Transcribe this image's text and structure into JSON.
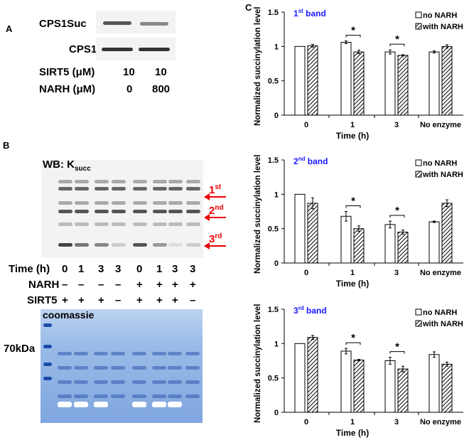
{
  "panel_a": {
    "label": "A",
    "blot_labels": [
      "CPS1Suc",
      "CPS1"
    ],
    "rows": [
      {
        "label": "SIRT5 (μM)",
        "values": [
          "10",
          "10"
        ]
      },
      {
        "label": "NARH (μM)",
        "values": [
          "0",
          "800"
        ]
      }
    ]
  },
  "panel_b": {
    "label": "B",
    "wb_label": "WB: K",
    "wb_sub": "succ",
    "band_labels": [
      {
        "n": "1",
        "sup": "st"
      },
      {
        "n": "2",
        "sup": "nd"
      },
      {
        "n": "3",
        "sup": "rd"
      }
    ],
    "rows": [
      {
        "label": "Time (h)",
        "values": [
          "0",
          "1",
          "3",
          "3",
          "0",
          "1",
          "3",
          "3"
        ]
      },
      {
        "label": "NARH",
        "values": [
          "–",
          "–",
          "–",
          "–",
          "+",
          "+",
          "+",
          "+"
        ]
      },
      {
        "label": "SIRT5",
        "values": [
          "+",
          "+",
          "+",
          "–",
          "+",
          "+",
          "+",
          "–"
        ]
      }
    ],
    "gel_label": "coomassie",
    "marker_label": "70kDa"
  },
  "panel_c": {
    "label": "C"
  },
  "chart_data": [
    {
      "type": "bar",
      "title": "1",
      "title_sup": "st",
      "title_suffix": " band",
      "title_color": "#1a1aff",
      "categories": [
        "0",
        "1",
        "3",
        "No enzyme"
      ],
      "xlabel": "Time (h)",
      "ylabel": "Normalized succinylation level",
      "ylim": [
        0,
        1.5
      ],
      "yticks": [
        "0",
        "0.5",
        "1",
        "1.5"
      ],
      "legend": "top-right",
      "series": [
        {
          "name": "no NARH",
          "fill": "white",
          "values": [
            1.0,
            1.06,
            0.92,
            0.92
          ],
          "errors": [
            0,
            0.02,
            0.03,
            0.015
          ]
        },
        {
          "name": "with NARH",
          "fill": "hatched",
          "values": [
            1.01,
            0.92,
            0.87,
            1.0
          ],
          "errors": [
            0.02,
            0.025,
            0.01,
            0.025
          ]
        }
      ],
      "significance": [
        {
          "category": "1",
          "mark": "*"
        },
        {
          "category": "3",
          "mark": "*"
        }
      ]
    },
    {
      "type": "bar",
      "title": "2",
      "title_sup": "nd",
      "title_suffix": " band",
      "title_color": "#1a1aff",
      "categories": [
        "0",
        "1",
        "3",
        "No enzyme"
      ],
      "xlabel": "Time (h)",
      "ylabel": "Normalized succinylation level",
      "ylim": [
        0,
        1.5
      ],
      "yticks": [
        "0",
        "0.5",
        "1",
        "1.5"
      ],
      "legend": "top-right",
      "series": [
        {
          "name": "no NARH",
          "fill": "white",
          "values": [
            1.0,
            0.68,
            0.56,
            0.6
          ],
          "errors": [
            0,
            0.07,
            0.05,
            0.01
          ]
        },
        {
          "name": "with NARH",
          "fill": "hatched",
          "values": [
            0.87,
            0.5,
            0.45,
            0.87
          ],
          "errors": [
            0.08,
            0.04,
            0.03,
            0.05
          ]
        }
      ],
      "significance": [
        {
          "category": "1",
          "mark": "*"
        },
        {
          "category": "3",
          "mark": "*"
        }
      ]
    },
    {
      "type": "bar",
      "title": "3",
      "title_sup": "rd",
      "title_suffix": " band",
      "title_color": "#1a1aff",
      "categories": [
        "0",
        "1",
        "3",
        "No enzyme"
      ],
      "xlabel": "Time (h)",
      "ylabel": "Normalized succinylation level",
      "ylim": [
        0,
        1.5
      ],
      "yticks": [
        "0",
        "0.5",
        "1",
        "1.5"
      ],
      "legend": "top-right",
      "series": [
        {
          "name": "no NARH",
          "fill": "white",
          "values": [
            1.0,
            0.89,
            0.75,
            0.84
          ],
          "errors": [
            0,
            0.04,
            0.05,
            0.04
          ]
        },
        {
          "name": "with NARH",
          "fill": "hatched",
          "values": [
            1.09,
            0.76,
            0.63,
            0.7
          ],
          "errors": [
            0.03,
            0.01,
            0.04,
            0.03
          ]
        }
      ],
      "significance": [
        {
          "category": "1",
          "mark": "*"
        },
        {
          "category": "3",
          "mark": "*"
        }
      ]
    }
  ]
}
